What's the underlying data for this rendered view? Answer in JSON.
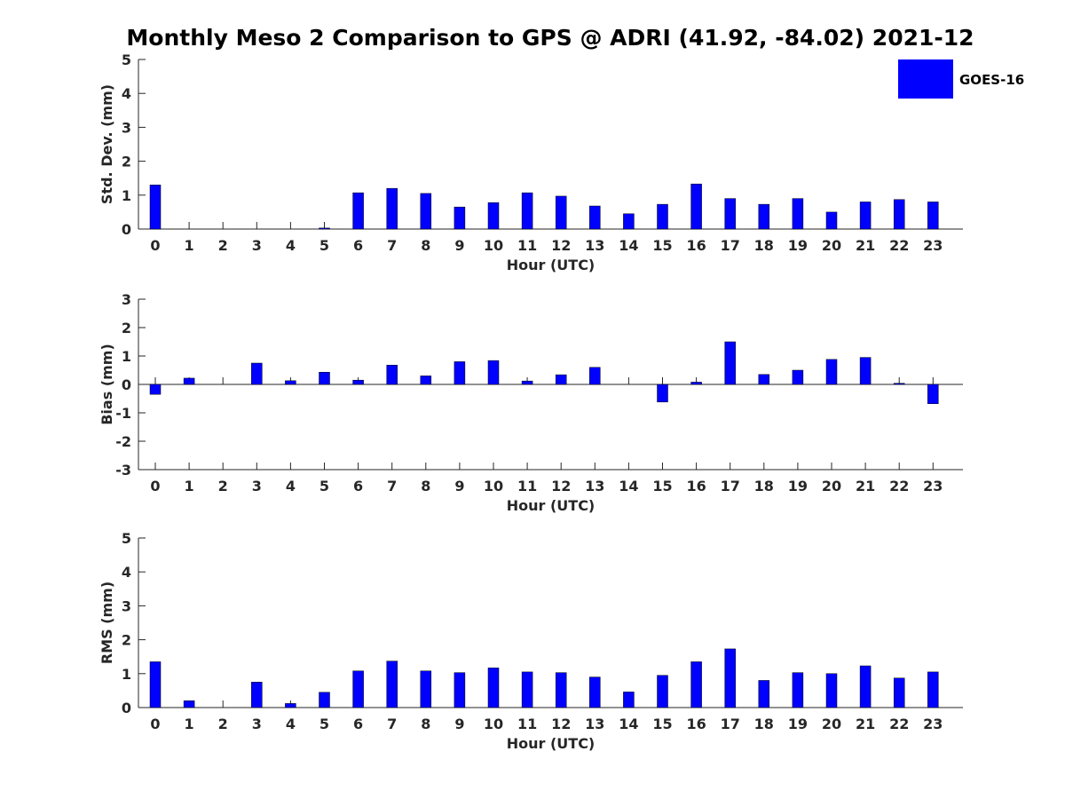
{
  "chart_data": {
    "title": "Monthly Meso 2 Comparison to GPS @ ADRI (41.92, -84.02) 2021-12",
    "type": "bar",
    "legend": {
      "position": "top-right",
      "entries": [
        "GOES-16"
      ]
    },
    "colors": {
      "bar": "#0000ff",
      "axis": "#262626"
    },
    "grid": false,
    "subplots": [
      {
        "type": "bar",
        "ylabel": "Std. Dev. (mm)",
        "xlabel": "Hour (UTC)",
        "ylim": [
          0,
          5
        ],
        "yticks": [
          "0",
          "1",
          "2",
          "3",
          "4",
          "5"
        ],
        "categories": [
          "0",
          "1",
          "2",
          "3",
          "4",
          "5",
          "6",
          "7",
          "8",
          "9",
          "10",
          "11",
          "12",
          "13",
          "14",
          "15",
          "16",
          "17",
          "18",
          "19",
          "20",
          "21",
          "22",
          "23"
        ],
        "series": [
          {
            "name": "GOES-16",
            "values": [
              1.3,
              0.0,
              0.0,
              0.0,
              0.0,
              0.03,
              1.07,
              1.2,
              1.05,
              0.65,
              0.78,
              1.07,
              0.97,
              0.68,
              0.45,
              0.73,
              1.33,
              0.9,
              0.73,
              0.9,
              0.5,
              0.8,
              0.87,
              0.8
            ]
          }
        ]
      },
      {
        "type": "bar",
        "ylabel": "Bias (mm)",
        "xlabel": "Hour (UTC)",
        "ylim": [
          -3,
          3
        ],
        "yticks": [
          "-3",
          "-2",
          "-1",
          "0",
          "1",
          "2",
          "3"
        ],
        "categories": [
          "0",
          "1",
          "2",
          "3",
          "4",
          "5",
          "6",
          "7",
          "8",
          "9",
          "10",
          "11",
          "12",
          "13",
          "14",
          "15",
          "16",
          "17",
          "18",
          "19",
          "20",
          "21",
          "22",
          "23"
        ],
        "series": [
          {
            "name": "GOES-16",
            "values": [
              -0.35,
              0.22,
              0.0,
              0.75,
              0.13,
              0.43,
              0.15,
              0.68,
              0.3,
              0.8,
              0.84,
              0.12,
              0.34,
              0.6,
              0.0,
              -0.62,
              0.08,
              1.5,
              0.35,
              0.5,
              0.88,
              0.95,
              0.04,
              -0.68
            ]
          }
        ]
      },
      {
        "type": "bar",
        "ylabel": "RMS (mm)",
        "xlabel": "Hour (UTC)",
        "ylim": [
          0,
          5
        ],
        "yticks": [
          "0",
          "1",
          "2",
          "3",
          "4",
          "5"
        ],
        "categories": [
          "0",
          "1",
          "2",
          "3",
          "4",
          "5",
          "6",
          "7",
          "8",
          "9",
          "10",
          "11",
          "12",
          "13",
          "14",
          "15",
          "16",
          "17",
          "18",
          "19",
          "20",
          "21",
          "22",
          "23"
        ],
        "series": [
          {
            "name": "GOES-16",
            "values": [
              1.35,
              0.2,
              0.0,
              0.75,
              0.12,
              0.45,
              1.08,
              1.37,
              1.08,
              1.03,
              1.17,
              1.05,
              1.03,
              0.9,
              0.46,
              0.95,
              1.35,
              1.73,
              0.8,
              1.03,
              1.0,
              1.23,
              0.87,
              1.05
            ]
          }
        ]
      }
    ]
  }
}
